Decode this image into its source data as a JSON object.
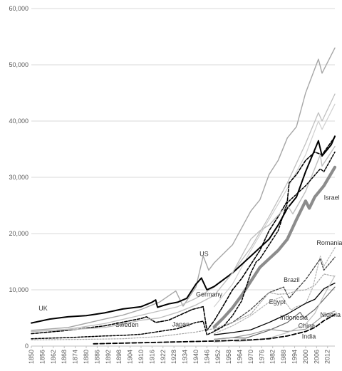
{
  "chart_data": {
    "type": "line",
    "title": "",
    "xlabel": "",
    "ylabel": "",
    "xlim": [
      1850,
      2016
    ],
    "ylim": [
      0,
      60000
    ],
    "grid": true,
    "legend": "none",
    "y_ticks": [
      {
        "value": 0,
        "label": "0"
      },
      {
        "value": 10000,
        "label": "10,000"
      },
      {
        "value": 20000,
        "label": "20,000"
      },
      {
        "value": 30000,
        "label": "30,000"
      },
      {
        "value": 40000,
        "label": "40,000"
      },
      {
        "value": 50000,
        "label": "50,000"
      },
      {
        "value": 60000,
        "label": "60,000"
      }
    ],
    "x_ticks": [
      "1850",
      "1856",
      "1862",
      "1868",
      "1874",
      "1880",
      "1886",
      "1892",
      "1898",
      "1904",
      "1910",
      "1916",
      "1922",
      "1928",
      "1934",
      "1940",
      "1946",
      "1952",
      "1958",
      "1964",
      "1970",
      "1976",
      "1982",
      "1988",
      "1994",
      "2000",
      "2006",
      "2012"
    ],
    "series": [
      {
        "name": "US",
        "color": "#a6a6a6",
        "width": 1.4,
        "dash": "",
        "label": {
          "text": "US",
          "x": 1942,
          "y": 16000
        },
        "points": [
          [
            1850,
            2800
          ],
          [
            1870,
            3300
          ],
          [
            1890,
            4800
          ],
          [
            1900,
            5500
          ],
          [
            1910,
            6500
          ],
          [
            1916,
            7300
          ],
          [
            1920,
            7800
          ],
          [
            1929,
            9800
          ],
          [
            1933,
            7100
          ],
          [
            1940,
            10500
          ],
          [
            1944,
            16000
          ],
          [
            1947,
            13500
          ],
          [
            1950,
            14800
          ],
          [
            1960,
            18000
          ],
          [
            1970,
            24000
          ],
          [
            1975,
            26000
          ],
          [
            1980,
            30500
          ],
          [
            1985,
            33000
          ],
          [
            1990,
            37000
          ],
          [
            1995,
            39000
          ],
          [
            2000,
            45000
          ],
          [
            2007,
            51000
          ],
          [
            2009,
            48500
          ],
          [
            2016,
            53000
          ]
        ]
      },
      {
        "name": "",
        "color": "#bfbfbf",
        "width": 1.3,
        "dash": "",
        "points": [
          [
            1850,
            2600
          ],
          [
            1870,
            3000
          ],
          [
            1890,
            4000
          ],
          [
            1910,
            5500
          ],
          [
            1930,
            7000
          ],
          [
            1940,
            8500
          ],
          [
            1950,
            10500
          ],
          [
            1960,
            13000
          ],
          [
            1970,
            17500
          ],
          [
            1980,
            23000
          ],
          [
            1990,
            29000
          ],
          [
            2000,
            36000
          ],
          [
            2007,
            41500
          ],
          [
            2009,
            40000
          ],
          [
            2016,
            44800
          ]
        ]
      },
      {
        "name": "",
        "color": "#d0d0d0",
        "width": 1.2,
        "dash": "",
        "points": [
          [
            1950,
            7000
          ],
          [
            1960,
            11000
          ],
          [
            1970,
            17000
          ],
          [
            1980,
            22500
          ],
          [
            1990,
            28000
          ],
          [
            2000,
            34000
          ],
          [
            2007,
            40000
          ],
          [
            2009,
            38500
          ],
          [
            2016,
            43000
          ]
        ]
      },
      {
        "name": "UK",
        "color": "#000000",
        "width": 2.0,
        "dash": "",
        "label": {
          "text": "UK",
          "x": 1854,
          "y": 6300
        },
        "points": [
          [
            1850,
            4100
          ],
          [
            1860,
            4800
          ],
          [
            1870,
            5200
          ],
          [
            1880,
            5400
          ],
          [
            1890,
            5900
          ],
          [
            1900,
            6600
          ],
          [
            1910,
            7000
          ],
          [
            1916,
            7800
          ],
          [
            1918,
            8200
          ],
          [
            1919,
            6900
          ],
          [
            1925,
            7500
          ],
          [
            1930,
            7800
          ],
          [
            1935,
            8500
          ],
          [
            1940,
            11000
          ],
          [
            1943,
            12100
          ],
          [
            1946,
            10000
          ],
          [
            1950,
            10600
          ],
          [
            1960,
            13000
          ],
          [
            1970,
            16000
          ],
          [
            1975,
            17500
          ],
          [
            1980,
            19000
          ],
          [
            1985,
            21500
          ],
          [
            1990,
            24500
          ],
          [
            1995,
            26500
          ],
          [
            2000,
            31000
          ],
          [
            2007,
            36500
          ],
          [
            2009,
            33800
          ],
          [
            2014,
            35800
          ],
          [
            2016,
            37300
          ]
        ]
      },
      {
        "name": "Germany",
        "color": "#000000",
        "width": 1.6,
        "dash": "4,2",
        "label": {
          "text": "Germany",
          "x": 1940,
          "y": 8800
        },
        "points": [
          [
            1850,
            2200
          ],
          [
            1870,
            2800
          ],
          [
            1890,
            3600
          ],
          [
            1910,
            4900
          ],
          [
            1913,
            5200
          ],
          [
            1918,
            4200
          ],
          [
            1925,
            4600
          ],
          [
            1938,
            6500
          ],
          [
            1944,
            7000
          ],
          [
            1946,
            2800
          ],
          [
            1950,
            4500
          ],
          [
            1955,
            7200
          ],
          [
            1960,
            10000
          ],
          [
            1965,
            12000
          ],
          [
            1970,
            14500
          ],
          [
            1975,
            17000
          ],
          [
            1980,
            20500
          ],
          [
            1985,
            23000
          ],
          [
            1990,
            25800
          ],
          [
            1991,
            29000
          ],
          [
            1995,
            30500
          ],
          [
            2000,
            33000
          ],
          [
            2005,
            34500
          ],
          [
            2009,
            34000
          ],
          [
            2016,
            37200
          ]
        ]
      },
      {
        "name": "Israel",
        "color": "#8c8c8c",
        "width": 4.2,
        "dash": "",
        "label": {
          "text": "Israel",
          "x": 2010,
          "y": 26000
        },
        "points": [
          [
            1950,
            3400
          ],
          [
            1955,
            5000
          ],
          [
            1960,
            6800
          ],
          [
            1965,
            9000
          ],
          [
            1970,
            11500
          ],
          [
            1975,
            14000
          ],
          [
            1980,
            15500
          ],
          [
            1985,
            17000
          ],
          [
            1990,
            19000
          ],
          [
            1995,
            22500
          ],
          [
            2000,
            25800
          ],
          [
            2002,
            24500
          ],
          [
            2005,
            26500
          ],
          [
            2010,
            28500
          ],
          [
            2016,
            31800
          ]
        ]
      },
      {
        "name": "Romania",
        "color": "#b3b3b3",
        "width": 1.2,
        "dash": "2,2",
        "label": {
          "text": "Romania",
          "x": 2006,
          "y": 18000
        },
        "points": [
          [
            1950,
            2200
          ],
          [
            1960,
            3600
          ],
          [
            1970,
            5400
          ],
          [
            1980,
            7800
          ],
          [
            1987,
            8800
          ],
          [
            1990,
            7300
          ],
          [
            1992,
            6400
          ],
          [
            1995,
            7000
          ],
          [
            2000,
            7500
          ],
          [
            2004,
            10500
          ],
          [
            2008,
            16000
          ],
          [
            2010,
            14200
          ],
          [
            2016,
            17500
          ]
        ]
      },
      {
        "name": "",
        "color": "#404040",
        "width": 1.3,
        "dash": "3,2",
        "points": [
          [
            1950,
            2800
          ],
          [
            1960,
            4200
          ],
          [
            1970,
            6500
          ],
          [
            1980,
            9500
          ],
          [
            1988,
            10500
          ],
          [
            1991,
            8500
          ],
          [
            1995,
            10000
          ],
          [
            2000,
            11800
          ],
          [
            2008,
            15500
          ],
          [
            2010,
            13500
          ],
          [
            2016,
            15800
          ]
        ]
      },
      {
        "name": "Brazil",
        "color": "#a6a6a6",
        "width": 1.2,
        "dash": "2,2",
        "label": {
          "text": "Brazil",
          "x": 1988,
          "y": 11400
        },
        "points": [
          [
            1850,
            1100
          ],
          [
            1880,
            1200
          ],
          [
            1900,
            1300
          ],
          [
            1920,
            1700
          ],
          [
            1940,
            2500
          ],
          [
            1950,
            3100
          ],
          [
            1960,
            4200
          ],
          [
            1970,
            5700
          ],
          [
            1980,
            9500
          ],
          [
            1985,
            9200
          ],
          [
            1990,
            9300
          ],
          [
            1995,
            9800
          ],
          [
            2000,
            10000
          ],
          [
            2005,
            10800
          ],
          [
            2010,
            12800
          ],
          [
            2016,
            12400
          ]
        ]
      },
      {
        "name": "Egypt",
        "color": "#000000",
        "width": 1.3,
        "dash": "",
        "label": {
          "text": "Egypt",
          "x": 1980,
          "y": 7500
        },
        "points": [
          [
            1950,
            2000
          ],
          [
            1960,
            2400
          ],
          [
            1970,
            2900
          ],
          [
            1980,
            4200
          ],
          [
            1990,
            5700
          ],
          [
            2000,
            7600
          ],
          [
            2005,
            8300
          ],
          [
            2010,
            10200
          ],
          [
            2016,
            11200
          ]
        ]
      },
      {
        "name": "Indonesia",
        "color": "#666666",
        "width": 1.2,
        "dash": "",
        "label": {
          "text": "Indonesia",
          "x": 1986,
          "y": 4700
        },
        "points": [
          [
            1950,
            1200
          ],
          [
            1960,
            1500
          ],
          [
            1967,
            1400
          ],
          [
            1970,
            1700
          ],
          [
            1980,
            2800
          ],
          [
            1990,
            4200
          ],
          [
            1997,
            6000
          ],
          [
            1999,
            5000
          ],
          [
            2005,
            6500
          ],
          [
            2010,
            8300
          ],
          [
            2016,
            10500
          ]
        ]
      },
      {
        "name": "Nigeria",
        "color": "#999999",
        "width": 1.2,
        "dash": "",
        "label": {
          "text": "Nigeria",
          "x": 2008,
          "y": 5200
        },
        "points": [
          [
            1950,
            1200
          ],
          [
            1960,
            1500
          ],
          [
            1970,
            2100
          ],
          [
            1980,
            3000
          ],
          [
            1990,
            2600
          ],
          [
            2000,
            3000
          ],
          [
            2005,
            4200
          ],
          [
            2010,
            5500
          ],
          [
            2016,
            6200
          ]
        ]
      },
      {
        "name": "China",
        "color": "#bfbfbf",
        "width": 1.2,
        "dash": "",
        "label": {
          "text": "China",
          "x": 1996,
          "y": 3200
        },
        "points": [
          [
            1950,
            700
          ],
          [
            1960,
            1000
          ],
          [
            1962,
            800
          ],
          [
            1970,
            1000
          ],
          [
            1980,
            1400
          ],
          [
            1990,
            2400
          ],
          [
            2000,
            3900
          ],
          [
            2005,
            5800
          ],
          [
            2010,
            9000
          ],
          [
            2016,
            12500
          ]
        ]
      },
      {
        "name": "India",
        "color": "#000000",
        "width": 1.8,
        "dash": "6,3",
        "label": {
          "text": "India",
          "x": 1998,
          "y": 1300
        },
        "points": [
          [
            1884,
            400
          ],
          [
            1910,
            600
          ],
          [
            1930,
            750
          ],
          [
            1950,
            900
          ],
          [
            1960,
            1000
          ],
          [
            1970,
            1100
          ],
          [
            1980,
            1300
          ],
          [
            1990,
            1800
          ],
          [
            2000,
            2600
          ],
          [
            2005,
            3300
          ],
          [
            2010,
            4500
          ],
          [
            2016,
            5600
          ]
        ]
      },
      {
        "name": "Sweden",
        "color": "#bfbfbf",
        "width": 1.4,
        "dash": "",
        "label": {
          "text": "Sweden",
          "x": 1896,
          "y": 3400
        },
        "points": [
          [
            1850,
            2600
          ],
          [
            1870,
            2900
          ],
          [
            1890,
            3300
          ],
          [
            1900,
            3900
          ],
          [
            1910,
            4600
          ],
          [
            1920,
            5000
          ],
          [
            1930,
            6000
          ],
          [
            1940,
            7300
          ],
          [
            1950,
            9000
          ],
          [
            1960,
            13000
          ],
          [
            1970,
            19000
          ],
          [
            1975,
            20500
          ],
          [
            1980,
            21500
          ],
          [
            1990,
            25000
          ],
          [
            1993,
            23500
          ],
          [
            2000,
            27500
          ],
          [
            2008,
            34000
          ],
          [
            2009,
            32000
          ],
          [
            2016,
            35500
          ]
        ]
      },
      {
        "name": "Japan",
        "color": "#000000",
        "width": 1.5,
        "dash": "3,2",
        "label": {
          "text": "Japan",
          "x": 1927,
          "y": 3500
        },
        "points": [
          [
            1850,
            1300
          ],
          [
            1870,
            1500
          ],
          [
            1890,
            1800
          ],
          [
            1900,
            1900
          ],
          [
            1910,
            2100
          ],
          [
            1920,
            2600
          ],
          [
            1930,
            3100
          ],
          [
            1940,
            4200
          ],
          [
            1944,
            4400
          ],
          [
            1946,
            2000
          ],
          [
            1950,
            2600
          ],
          [
            1955,
            3500
          ],
          [
            1960,
            5400
          ],
          [
            1965,
            8000
          ],
          [
            1970,
            13000
          ],
          [
            1973,
            15000
          ],
          [
            1975,
            15500
          ],
          [
            1980,
            18000
          ],
          [
            1985,
            20500
          ],
          [
            1990,
            25500
          ],
          [
            1995,
            27000
          ],
          [
            2000,
            28500
          ],
          [
            2008,
            31500
          ],
          [
            2010,
            31000
          ],
          [
            2016,
            34500
          ]
        ]
      }
    ]
  }
}
